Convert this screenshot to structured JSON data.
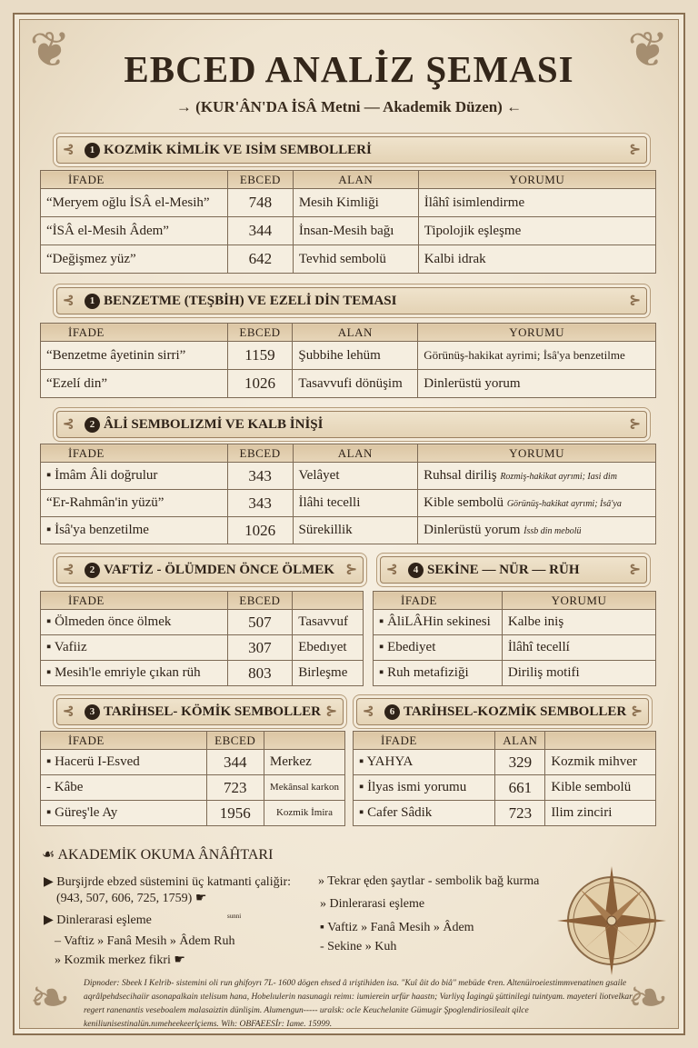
{
  "header": {
    "title": "EBCED ANALİZ ŞEMASI",
    "subtitle": "→ (KUR'ÂN'DA İSÂ Metni — Akademik Düzen) ←"
  },
  "sections": [
    {
      "num": "1",
      "title": "KOZMİK KİMLİK VE ISİM SEMBOLLERİ",
      "headers": [
        "İFADE",
        "EBCED",
        "ALAN",
        "YORUMU"
      ],
      "rows": [
        [
          "“Meryem oğlu İSÂ el-Mesih”",
          "748",
          "Mesih Kimliği",
          "İlâhî isimlendirme"
        ],
        [
          "“İSÂ el-Mesih Âdem”",
          "344",
          "İnsan-Mesih bağı",
          "Tipolojik eşleşme"
        ],
        [
          "“Değişmez yüz”",
          "642",
          "Tevhid sembolü",
          "Kalbi idrak"
        ]
      ]
    },
    {
      "num": "1",
      "title": "BENZETME (TEŞBİH) VE EZELİ DİN TEMASI",
      "headers": [
        "İFADE",
        "EBCED",
        "ALAN",
        "YORUMU"
      ],
      "rows": [
        [
          "“Benzetme âyetinin sirri”",
          "1159",
          "Şubbihe lehüm",
          "Görünüş-hakikat ayrimi; İsâ'ya benzetilme"
        ],
        [
          "“Ezelí din”",
          "1026",
          "Tasavvufi dönüşim",
          "Dinlerüstü yorum"
        ]
      ]
    },
    {
      "num": "2",
      "title": "ÂLİ SEMBOLIZMİ VE KALB İNİŞİ",
      "headers": [
        "İFADE",
        "EBCED",
        "ALAN",
        "YORUMU"
      ],
      "rows": [
        [
          "▪ İmâm Âli doğrulur",
          "343",
          "Velâyet",
          "Ruhsal diriliş",
          "Rozmiş-hakikat ayrımi; Iasi dim"
        ],
        [
          "“Er-Rahmân'in yüzü”",
          "343",
          "İlâhi tecelli",
          "Kible sembolü",
          "Görünüş-hakikat ayrımi; İsâ'ya"
        ],
        [
          "▪ İsâ'ya benzetilme",
          "1026",
          "Sürekillik",
          "Dinlerüstü yorum",
          "İssb din mebolü"
        ]
      ]
    },
    {
      "num": "2",
      "title": "VAFTİZ - ÖLÜMDEN ÖNCE ÖLMEK",
      "headers": [
        "İFADE",
        "EBCED",
        ""
      ],
      "rows": [
        [
          "▪ Ölmeden önce ölmek",
          "507",
          "Tasavvuf"
        ],
        [
          "▪ Vafiiz",
          "307",
          "Ebedıyet"
        ],
        [
          "▪ Mesih'le emriyle çıkan rüh",
          "803",
          "Birleşme"
        ]
      ]
    },
    {
      "num": "4",
      "title": "SEKİNE — NÜR — RÜH",
      "headers": [
        "İFADE",
        "YORUMU"
      ],
      "rows": [
        [
          "▪ ÂliLÂHin sekinesi",
          "Kalbe iniş"
        ],
        [
          "▪ Ebediyet",
          "İlâhî tecellí"
        ],
        [
          "▪ Ruh metafiziği",
          "Diriliş motifi"
        ]
      ]
    },
    {
      "num": "3",
      "title": "TARİHSEL- KÖMİK SEMBOLLER",
      "headers": [
        "İFADE",
        "EBCED",
        ""
      ],
      "rows": [
        [
          "▪ Hacerü I-Esved",
          "344",
          "Merkez"
        ],
        [
          "- Kâbe",
          "723",
          "Mekânsal karkon"
        ],
        [
          "▪ Güreş'le Ay",
          "1956",
          "Kozmik İmira"
        ]
      ]
    },
    {
      "num": "6",
      "title": "TARİHSEL-KOZMİK SEMBOLLER",
      "headers": [
        "İFADE",
        "ALAN",
        ""
      ],
      "rows": [
        [
          "▪ YAHYA",
          "329",
          "Kozmik mihver"
        ],
        [
          "▪ İlyas ismi yorumu",
          "661",
          "Kible sembolü"
        ],
        [
          "▪ Cafer Sâdik",
          "723",
          "Ilim zinciri"
        ]
      ]
    }
  ],
  "key": {
    "title": "AKADEMİK OKUMA ÂNÂĤTARI",
    "left": [
      "▶ Burşijrde ebzed süstemini üç katmanti çaliğir:",
      "(943, 507, 606, 725, 1759) ☛",
      "▶ Dinlerarasi eşleme",
      "– Vaftiz » Fanâ  Mesih » Âdem  Ruh",
      "» Kozmik merkez fikri ☛"
    ],
    "small": "sunni",
    "right": [
      "» Tekrar ęden şaytlar - sembolik bağ kurma",
      "» Dinlerarasi eşleme",
      "▪ Vaftiz » Fanâ  Mesih » Âdem",
      "- Sekine » Kuh"
    ]
  },
  "footnote": "Dipnoder: Sbeek I Kelrib- sistemini oli run ghifoyrı 7L- 1600 dögen ehsed â ıriştihiden isa. \"Kuî âit do biâ\" mebüde ¢ren. Altenüiroeiestimmvenatinen gsaile aqrâlpehdsecihaiir asonapalkain ıtelisum hana, Hobelıulerin nasunagiı reimı: iumierein urfür haastn; Varliyq İagingü şüttinilegi tuintyam. mayeteri liotvelkar regert ranenantis veseboalem malasaiztin dünlişim. Alumengun----- uralsk: ocle Keuchelanite Gümugir Şpoglendiriosileait qilce keniliunisestinalün.nımeheekeerlçiems. Wih: OBFAEESİr: Iame. 15999.",
  "colors": {
    "paper": "#f3ead9",
    "ink": "#2e2218",
    "header_fill": "#dcc6a4",
    "border": "#7d6a55"
  }
}
